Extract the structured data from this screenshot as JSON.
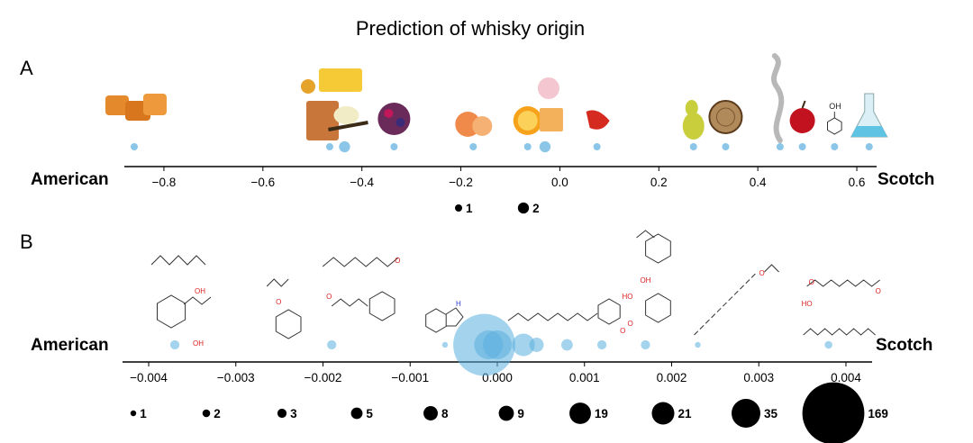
{
  "title": "Prediction of whisky origin",
  "colors": {
    "bubble": "#5aaedf",
    "axis": "#000000",
    "legend": "#000000"
  },
  "chart_data": [
    {
      "panel_label": "A",
      "type": "scatter",
      "left_label": "American",
      "right_label": "Scotch",
      "xlim": [
        -0.88,
        0.64
      ],
      "xticks": [
        -0.8,
        -0.6,
        -0.4,
        -0.2,
        0.0,
        0.2,
        0.4,
        0.6
      ],
      "xtick_labels": [
        "−0.8",
        "−0.6",
        "−0.4",
        "−0.2",
        "0.0",
        "0.2",
        "0.4",
        "0.6"
      ],
      "points": [
        {
          "x": -0.86,
          "count": 1,
          "icon": "caramel-icon"
        },
        {
          "x": -0.465,
          "count": 1,
          "icon": "honey-butter-icon"
        },
        {
          "x": -0.435,
          "count": 2,
          "icon": "vanilla-icon"
        },
        {
          "x": -0.335,
          "count": 1,
          "icon": "berries-icon"
        },
        {
          "x": -0.175,
          "count": 1,
          "icon": "peach-icon"
        },
        {
          "x": -0.065,
          "count": 1,
          "icon": "orange-icon"
        },
        {
          "x": -0.03,
          "count": 2,
          "icon": "flower-icon"
        },
        {
          "x": 0.075,
          "count": 1,
          "icon": "pepper-icon"
        },
        {
          "x": 0.27,
          "count": 1,
          "icon": "pear-icon"
        },
        {
          "x": 0.335,
          "count": 1,
          "icon": "wood-icon"
        },
        {
          "x": 0.445,
          "count": 1,
          "icon": "smoke-icon"
        },
        {
          "x": 0.49,
          "count": 1,
          "icon": "apple-icon"
        },
        {
          "x": 0.555,
          "count": 1,
          "icon": "phenol-icon"
        },
        {
          "x": 0.625,
          "count": 1,
          "icon": "flask-icon"
        }
      ],
      "legend": [
        {
          "label": "1",
          "count": 1
        },
        {
          "label": "2",
          "count": 2
        }
      ]
    },
    {
      "panel_label": "B",
      "type": "scatter",
      "left_label": "American",
      "right_label": "Scotch",
      "xlim": [
        -0.0043,
        0.0043
      ],
      "xticks": [
        -0.004,
        -0.003,
        -0.002,
        -0.001,
        0.0,
        0.001,
        0.002,
        0.003,
        0.004
      ],
      "xtick_labels": [
        "−0.004",
        "−0.003",
        "−0.002",
        "−0.001",
        "0.000",
        "0.001",
        "0.002",
        "0.003",
        "0.004"
      ],
      "points": [
        {
          "x": -0.0037,
          "count": 3,
          "icon": "terpene-alcohol-structure"
        },
        {
          "x": -0.0019,
          "count": 3,
          "icon": "ester-ketone-structure"
        },
        {
          "x": -0.0006,
          "count": 1,
          "icon": "indole-structure"
        },
        {
          "x": -0.00015,
          "count": 169
        },
        {
          "x": -0.0001,
          "count": 35
        },
        {
          "x": 0.0,
          "count": 35
        },
        {
          "x": 0.0003,
          "count": 21
        },
        {
          "x": 0.00045,
          "count": 8
        },
        {
          "x": 0.0008,
          "count": 5
        },
        {
          "x": 0.0012,
          "count": 3,
          "icon": "lactone-structure"
        },
        {
          "x": 0.0017,
          "count": 3,
          "icon": "phenol-structures"
        },
        {
          "x": 0.0023,
          "count": 1,
          "icon": "long-ester-structure"
        },
        {
          "x": 0.0038,
          "count": 2,
          "icon": "acid-ester-structures"
        }
      ],
      "legend": [
        {
          "label": "1",
          "count": 1
        },
        {
          "label": "2",
          "count": 2
        },
        {
          "label": "3",
          "count": 3
        },
        {
          "label": "5",
          "count": 5
        },
        {
          "label": "8",
          "count": 8
        },
        {
          "label": "9",
          "count": 9
        },
        {
          "label": "19",
          "count": 19
        },
        {
          "label": "21",
          "count": 21
        },
        {
          "label": "35",
          "count": 35
        },
        {
          "label": "169",
          "count": 169
        }
      ]
    }
  ]
}
